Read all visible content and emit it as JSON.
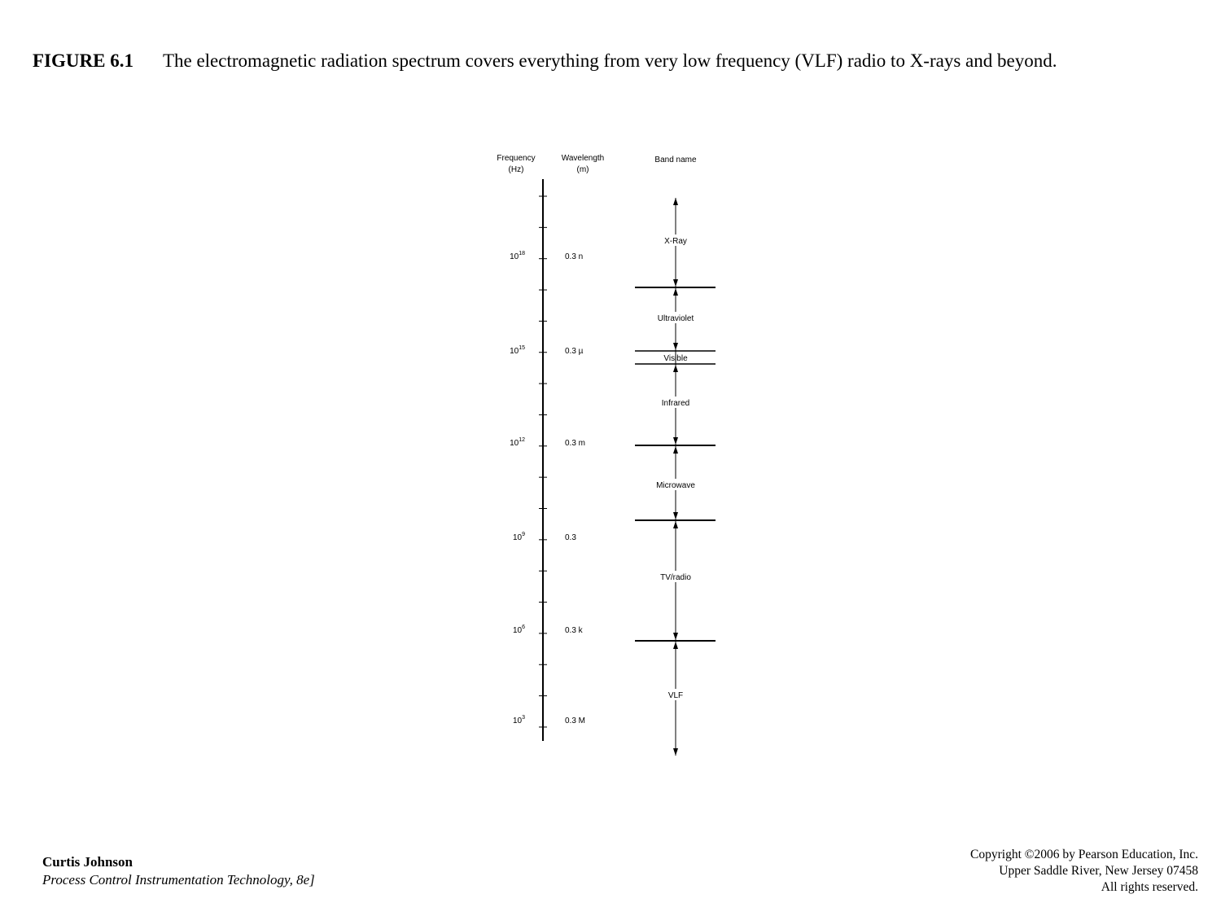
{
  "header": {
    "label": "FIGURE 6.1",
    "caption": "The electromagnetic radiation spectrum covers everything from very low frequency (VLF) radio to X-rays and beyond."
  },
  "diagram": {
    "frequency_header": [
      "Frequency",
      "(Hz)"
    ],
    "wavelength_header": [
      "Wavelength",
      "(m)"
    ],
    "band_header": "Band name",
    "frequencies": [
      {
        "base": "10",
        "exponent": "18"
      },
      {
        "base": "10",
        "exponent": "15"
      },
      {
        "base": "10",
        "exponent": "12"
      },
      {
        "base": "10",
        "exponent": "9"
      },
      {
        "base": "10",
        "exponent": "6"
      },
      {
        "base": "10",
        "exponent": "3"
      }
    ],
    "wavelengths": [
      "0.3 n",
      "0.3 µ",
      "0.3 m",
      "0.3",
      "0.3 k",
      "0.3 M"
    ],
    "bands": [
      "X-Ray",
      "Ultraviolet",
      "Visible",
      "Infrared",
      "Microwave",
      "TV/radio",
      "VLF"
    ]
  },
  "footer": {
    "author": "Curtis Johnson",
    "book": "Process Control Instrumentation Technology, 8e]",
    "copyright": [
      "Copyright ©2006 by Pearson Education, Inc.",
      "Upper Saddle River, New Jersey 07458",
      "All rights reserved."
    ]
  }
}
